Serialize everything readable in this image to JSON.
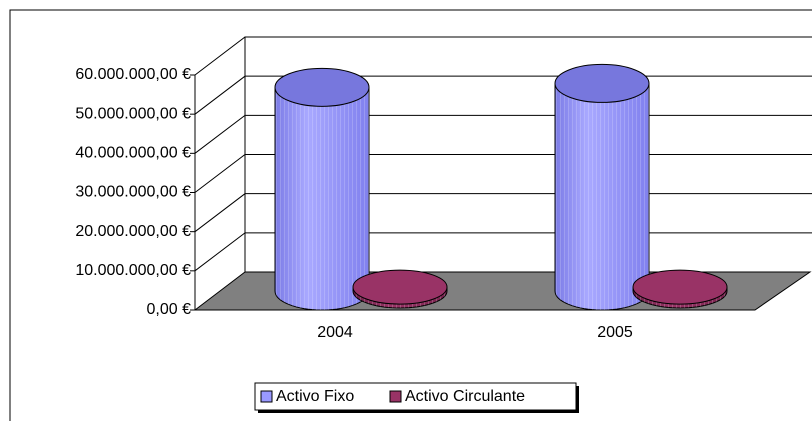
{
  "chart_data": {
    "type": "cylinder3d",
    "categories": [
      "2004",
      "2005"
    ],
    "series": [
      {
        "name": "Activo Fixo",
        "color": "#9999ff",
        "values": [
          52000000,
          53000000
        ]
      },
      {
        "name": "Activo Circulante",
        "color": "#993366",
        "values": [
          1000000,
          1000000
        ]
      }
    ],
    "ylim": [
      0,
      60000000
    ],
    "yticks": [
      {
        "value": 0,
        "label": "0,00 €"
      },
      {
        "value": 10000000,
        "label": "10.000.000,00 €"
      },
      {
        "value": 20000000,
        "label": "20.000.000,00 €"
      },
      {
        "value": 30000000,
        "label": "30.000.000,00 €"
      },
      {
        "value": 40000000,
        "label": "40.000.000,00 €"
      },
      {
        "value": 50000000,
        "label": "50.000.000,00 €"
      },
      {
        "value": 60000000,
        "label": "60.000.000,00 €"
      }
    ],
    "grid": true,
    "legend": "bottom"
  }
}
